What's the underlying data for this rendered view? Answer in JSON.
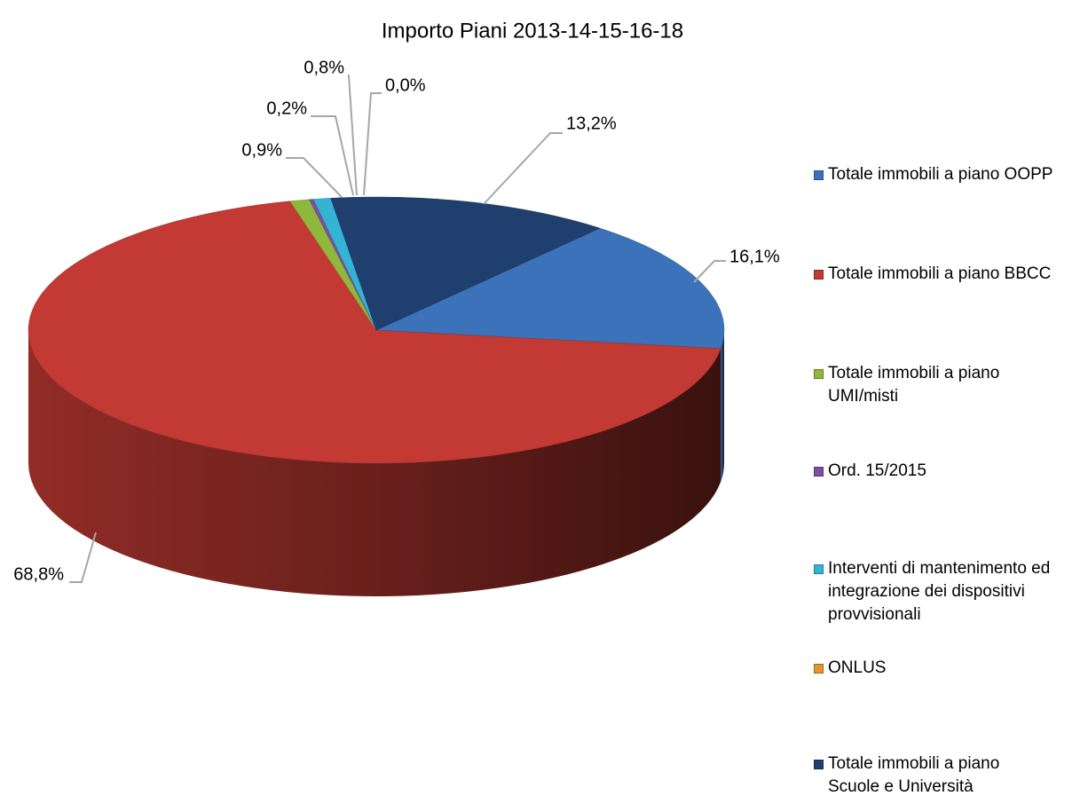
{
  "chart_data": {
    "type": "pie",
    "title": "Importo Piani 2013-14-15-16-18",
    "series": [
      {
        "name": "Totale immobili a piano OOPP",
        "color": "#3b72ba",
        "values": [
          16.1
        ],
        "value_labels": [
          "16,1%"
        ]
      },
      {
        "name": "Totale immobili a piano BBCC",
        "color": "#c23a33",
        "values": [
          68.8
        ],
        "value_labels": [
          "68,8%"
        ]
      },
      {
        "name": "Totale immobili a piano UMI/misti",
        "color": "#8fb73c",
        "values": [
          0.9
        ],
        "value_labels": [
          "0,9%"
        ]
      },
      {
        "name": "Ord. 15/2015",
        "color": "#7b4fa2",
        "values": [
          0.2
        ],
        "value_labels": [
          "0,2%"
        ]
      },
      {
        "name": "Interventi di mantenimento ed integrazione dei dispositivi provvisionali",
        "color": "#35b3d3",
        "values": [
          0.8
        ],
        "value_labels": [
          "0,8%"
        ]
      },
      {
        "name": "ONLUS",
        "color": "#e8932b",
        "values": [
          0.0
        ],
        "value_labels": [
          "0,0%"
        ]
      },
      {
        "name": "Totale immobili a piano Scuole e Università",
        "color": "#1f3f6f",
        "values": [
          13.2
        ],
        "value_labels": [
          "13,2%"
        ]
      }
    ],
    "legend": "right"
  }
}
